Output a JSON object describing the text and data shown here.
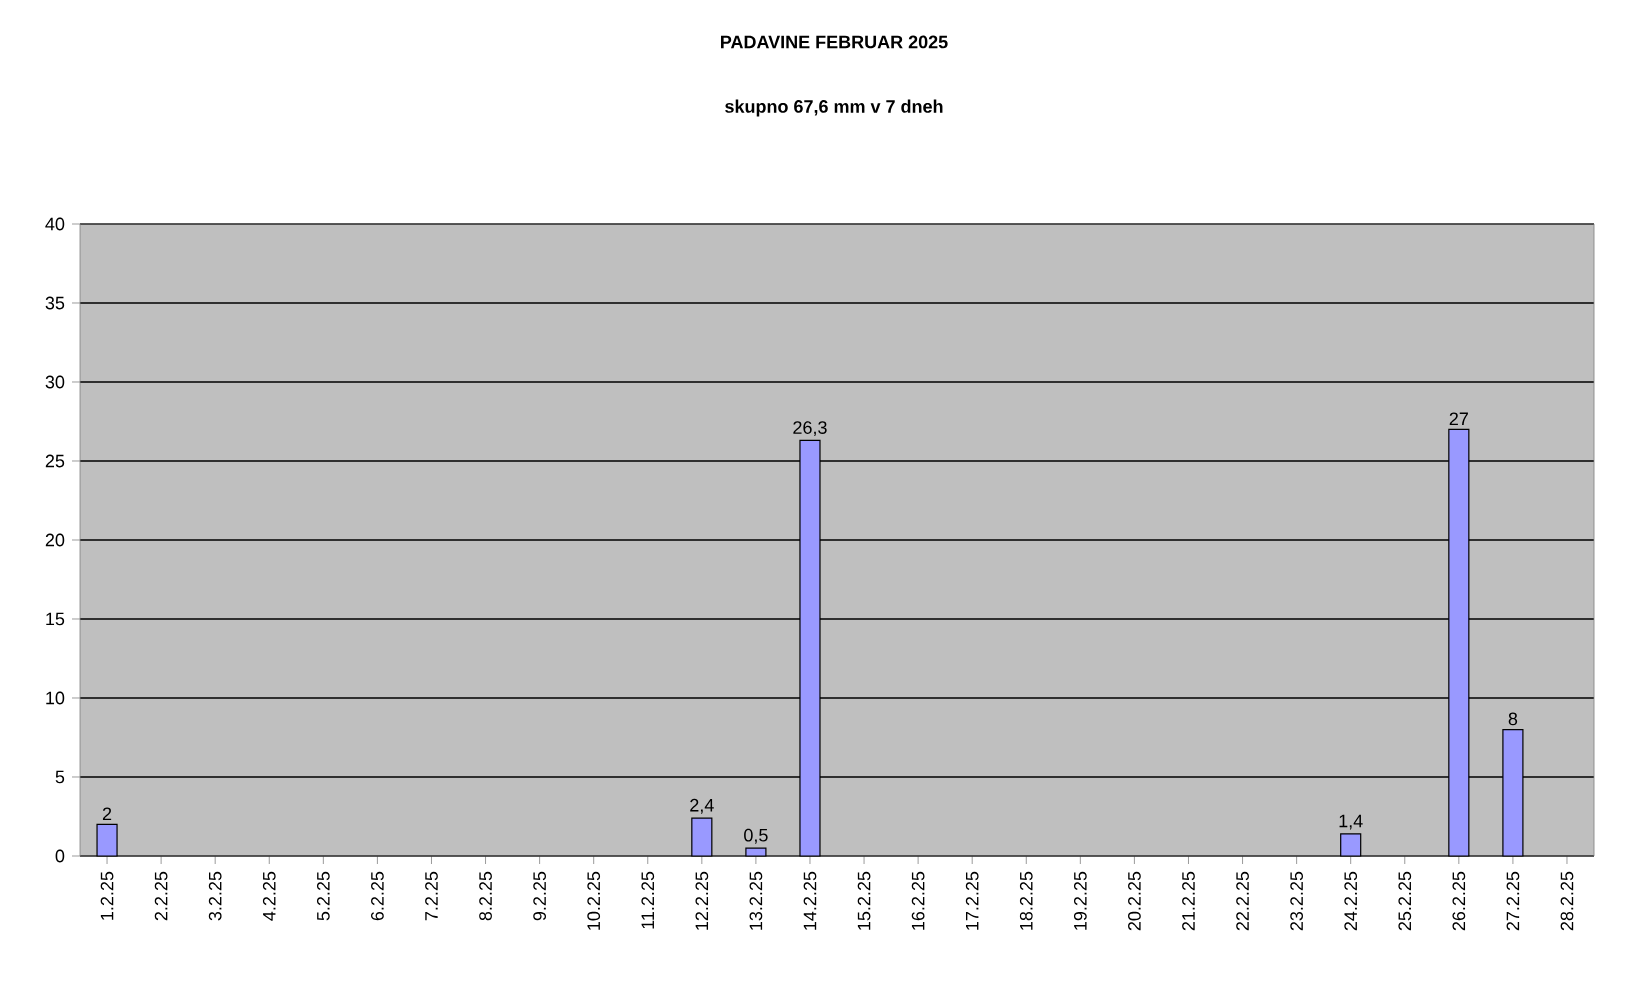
{
  "chart_data": {
    "type": "bar",
    "title": "PADAVINE FEBRUAR 2025",
    "subtitle": "skupno 67,6 mm v 7 dneh",
    "categories": [
      "1.2.25",
      "2.2.25",
      "3.2.25",
      "4.2.25",
      "5.2.25",
      "6.2.25",
      "7.2.25",
      "8.2.25",
      "9.2.25",
      "10.2.25",
      "11.2.25",
      "12.2.25",
      "13.2.25",
      "14.2.25",
      "15.2.25",
      "16.2.25",
      "17.2.25",
      "18.2.25",
      "19.2.25",
      "20.2.25",
      "21.2.25",
      "22.2.25",
      "23.2.25",
      "24.2.25",
      "25.2.25",
      "26.2.25",
      "27.2.25",
      "28.2.25"
    ],
    "values": [
      2,
      0,
      0,
      0,
      0,
      0,
      0,
      0,
      0,
      0,
      0,
      2.4,
      0.5,
      26.3,
      0,
      0,
      0,
      0,
      0,
      0,
      0,
      0,
      0,
      1.4,
      0,
      27,
      8,
      0
    ],
    "value_labels": [
      "2",
      null,
      null,
      null,
      null,
      null,
      null,
      null,
      null,
      null,
      null,
      "2,4",
      "0,5",
      "26,3",
      null,
      null,
      null,
      null,
      null,
      null,
      null,
      null,
      null,
      "1,4",
      null,
      "27",
      "8",
      null
    ],
    "color": "#9999ff",
    "ylim": [
      0,
      40
    ],
    "yticks": [
      0,
      5,
      10,
      15,
      20,
      25,
      30,
      35,
      40
    ],
    "grid": "y"
  }
}
